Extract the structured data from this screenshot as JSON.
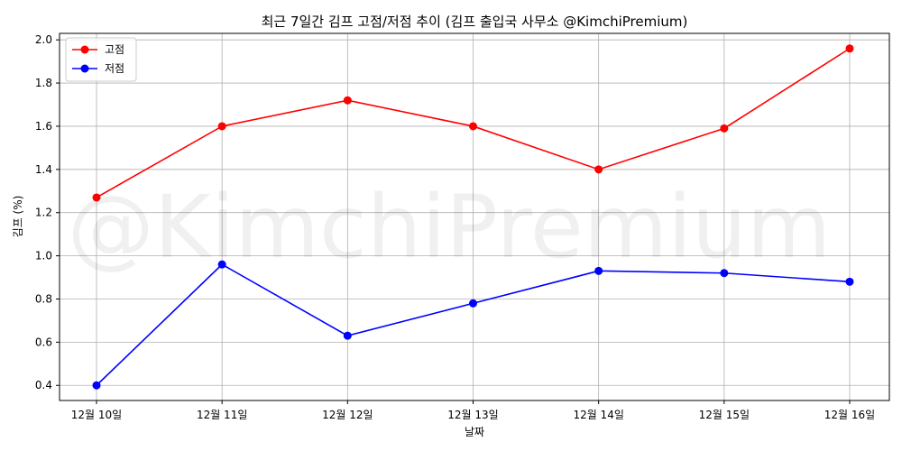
{
  "chart_data": {
    "type": "line",
    "title": "최근 7일간 김프 고점/저점 추이 (김프 출입국 사무소 @KimchiPremium)",
    "xlabel": "날짜",
    "ylabel": "김프 (%)",
    "categories": [
      "12월 10일",
      "12월 11일",
      "12월 12일",
      "12월 13일",
      "12월 14일",
      "12월 15일",
      "12월 16일"
    ],
    "series": [
      {
        "name": "고점",
        "color": "#ff0000",
        "values": [
          1.27,
          1.6,
          1.72,
          1.6,
          1.4,
          1.59,
          1.96
        ]
      },
      {
        "name": "저점",
        "color": "#0000ff",
        "values": [
          0.4,
          0.96,
          0.63,
          0.78,
          0.93,
          0.92,
          0.88
        ]
      }
    ],
    "ylim": [
      0.33,
      2.03
    ],
    "yticks": [
      "0.4",
      "0.6",
      "0.8",
      "1.0",
      "1.2",
      "1.4",
      "1.6",
      "1.8",
      "2.0"
    ],
    "grid": true,
    "legend_position": "top-left",
    "watermark": "@KimchiPremium"
  }
}
